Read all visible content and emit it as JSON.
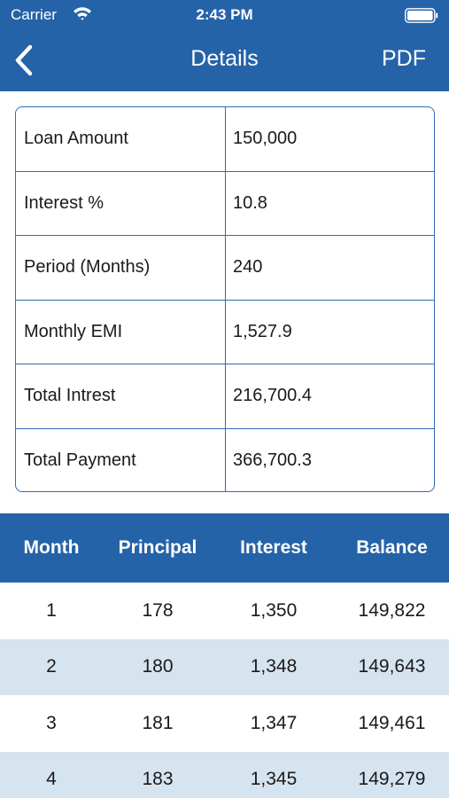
{
  "status_bar": {
    "carrier": "Carrier",
    "time": "2:43 PM",
    "icons": [
      "wifi-icon",
      "battery-icon"
    ]
  },
  "nav": {
    "back_icon": "chevron-left-icon",
    "title": "Details",
    "pdf_label": "PDF"
  },
  "colors": {
    "accent": "#2563a8",
    "border": "#2f6db3",
    "alt_row": "#d6e4f0"
  },
  "summary": [
    {
      "label": "Loan Amount",
      "value": "150,000"
    },
    {
      "label": "Interest %",
      "value": "10.8"
    },
    {
      "label": "Period (Months)",
      "value": "240"
    },
    {
      "label": "Monthly EMI",
      "value": "1,527.9"
    },
    {
      "label": "Total Intrest",
      "value": "216,700.4"
    },
    {
      "label": "Total Payment",
      "value": "366,700.3"
    }
  ],
  "schedule": {
    "headers": [
      "Month",
      "Principal",
      "Interest",
      "Balance"
    ],
    "rows": [
      [
        "1",
        "178",
        "1,350",
        "149,822"
      ],
      [
        "2",
        "180",
        "1,348",
        "149,643"
      ],
      [
        "3",
        "181",
        "1,347",
        "149,461"
      ],
      [
        "4",
        "183",
        "1,345",
        "149,279"
      ]
    ]
  }
}
